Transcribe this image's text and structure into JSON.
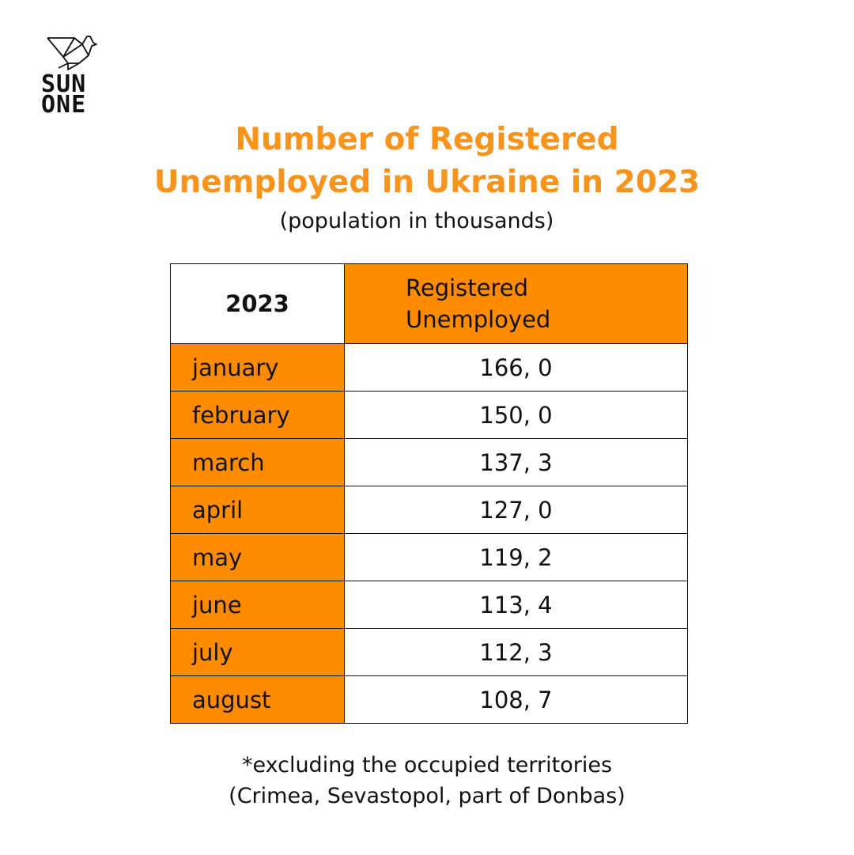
{
  "brand": {
    "logo_text_line1": "SUN",
    "logo_text_line2": "ONE",
    "icon": "origami-bird-icon"
  },
  "header": {
    "title_line1": "Number of Registered",
    "title_line2": "Unemployed in Ukraine in 2023",
    "subtitle": "(population in thousands)"
  },
  "colors": {
    "accent": "#ff8c00",
    "title": "#f7941d",
    "text": "#111111"
  },
  "chart_data": {
    "type": "table",
    "columns": [
      "2023",
      "Registered Unemployed"
    ],
    "header_label_line1": "Registered",
    "header_label_line2": "Unemployed",
    "rows": [
      {
        "month": "january",
        "value": "166, 0"
      },
      {
        "month": "february",
        "value": "150, 0"
      },
      {
        "month": "march",
        "value": "137, 3"
      },
      {
        "month": "april",
        "value": "127, 0"
      },
      {
        "month": "may",
        "value": "119, 2"
      },
      {
        "month": "june",
        "value": "113, 4"
      },
      {
        "month": "july",
        "value": "112, 3"
      },
      {
        "month": "august",
        "value": "108, 7"
      }
    ]
  },
  "footnote": {
    "line1": "*excluding the occupied territories",
    "line2": "(Crimea, Sevastopol, part of Donbas)"
  }
}
